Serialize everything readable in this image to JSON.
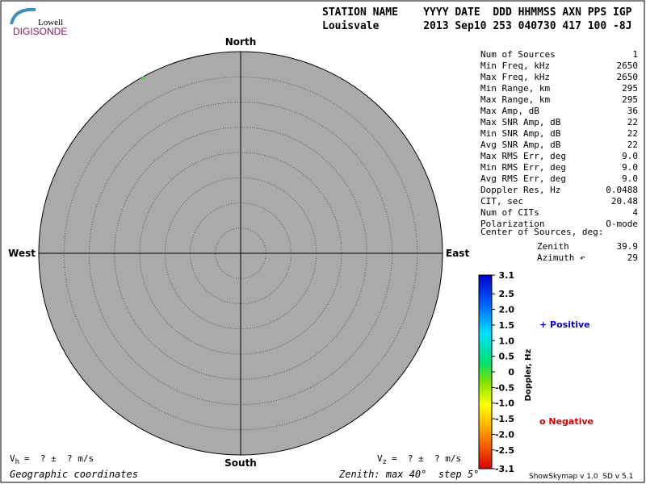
{
  "header": {
    "logo_top": "Lowell",
    "logo_bottom": "DIGISONDE",
    "columns": "STATION NAME    YYYY DATE  DDD HHMMSS AXN PPS IGP",
    "values": "Louisvale       2013 Sep10 253 040730 417 100 -8J"
  },
  "compass": {
    "north": "North",
    "south": "South",
    "east": "East",
    "west": "West"
  },
  "skymap": {
    "zenith_max": 40,
    "zenith_step": 5
  },
  "stats": [
    [
      "Num of Sources",
      "1"
    ],
    [
      "Min Freq, kHz",
      "2650"
    ],
    [
      "Max Freq, kHz",
      "2650"
    ],
    [
      "Min Range, km",
      "295"
    ],
    [
      "Max Range, km",
      "295"
    ],
    [
      "Max Amp, dB",
      "36"
    ],
    [
      "Max SNR Amp, dB",
      "22"
    ],
    [
      "Min SNR Amp, dB",
      "22"
    ],
    [
      "Avg SNR Amp, dB",
      "22"
    ],
    [
      "Max RMS Err, deg",
      "9.0"
    ],
    [
      "Min RMS Err, deg",
      "9.0"
    ],
    [
      "Avg RMS Err, deg",
      "9.0"
    ],
    [
      "Doppler Res, Hz",
      "0.0488"
    ],
    [
      "CIT, sec",
      "20.48"
    ],
    [
      "Num of CITs",
      "4"
    ],
    [
      "Polarization",
      "O-mode"
    ]
  ],
  "center": {
    "title": "Center of Sources, deg:",
    "zenith_label": "Zenith",
    "zenith": 39.9,
    "azimuth_label": "Azimuth ↶",
    "azimuth": 29
  },
  "colorbar": {
    "title": "Doppler, Hz",
    "ticks": [
      3.1,
      2.5,
      {
        "value": 2,
        "label": "2.0"
      },
      1.5,
      {
        "value": 1,
        "label": "1.0"
      },
      0.5,
      0,
      -0.5,
      {
        "value": -1,
        "label": "-1.0"
      },
      -1.5,
      {
        "value": -2,
        "label": "-2.0"
      },
      -2.5,
      -3.1
    ]
  },
  "legend": {
    "positive": "+ Positive",
    "negative": "o Negative"
  },
  "footer": {
    "vh_symbol": "V",
    "vh_sub": "h",
    "vh_text": "=  ? ±  ? m/s",
    "vz_symbol": "V",
    "vz_sub": "z",
    "vz_text": "=  ? ±  ? m/s",
    "coords": "Geographic coordinates",
    "zenith": "Zenith: max 40°  step 5°",
    "version": "ShowSkymap v 1.0  SD v 5.1"
  }
}
